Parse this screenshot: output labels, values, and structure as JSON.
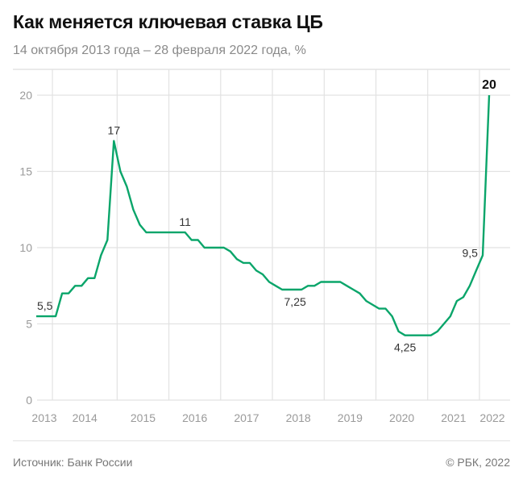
{
  "header": {
    "title": "Как меняется ключевая ставка ЦБ",
    "subtitle": "14 октября 2013 года – 28 февраля 2022 года, %"
  },
  "footer": {
    "source": "Источник: Банк России",
    "copyright": "© РБК, 2022"
  },
  "chart_data": {
    "type": "line",
    "title": "Как меняется ключевая ставка ЦБ",
    "subtitle": "14 октября 2013 года – 28 февраля 2022 года, %",
    "ylim": [
      0,
      20
    ],
    "yticks": [
      0,
      5,
      10,
      15,
      20
    ],
    "grid": true,
    "line_color": "#0aa56a",
    "years": [
      {
        "label": "2013",
        "count": 3
      },
      {
        "label": "2014",
        "count": 10
      },
      {
        "label": "2015",
        "count": 8
      },
      {
        "label": "2016",
        "count": 8
      },
      {
        "label": "2017",
        "count": 8
      },
      {
        "label": "2018",
        "count": 8
      },
      {
        "label": "2019",
        "count": 8
      },
      {
        "label": "2020",
        "count": 8
      },
      {
        "label": "2021",
        "count": 8
      },
      {
        "label": "2022",
        "count": 2
      }
    ],
    "values": [
      5.5,
      5.5,
      5.5,
      5.5,
      7,
      7,
      7.5,
      7.5,
      8,
      8,
      9.5,
      10.5,
      17,
      15,
      14,
      12.5,
      11.5,
      11,
      11,
      11,
      11,
      11,
      11,
      11,
      10.5,
      10.5,
      10,
      10,
      10,
      10,
      9.75,
      9.25,
      9,
      9,
      8.5,
      8.25,
      7.75,
      7.5,
      7.25,
      7.25,
      7.25,
      7.25,
      7.5,
      7.5,
      7.75,
      7.75,
      7.75,
      7.75,
      7.5,
      7.25,
      7,
      6.5,
      6.25,
      6,
      6,
      5.5,
      4.5,
      4.25,
      4.25,
      4.25,
      4.25,
      4.25,
      4.5,
      5,
      5.5,
      6.5,
      6.75,
      7.5,
      8.5,
      9.5,
      20
    ],
    "annotations": [
      {
        "index": 0,
        "text": "5,5",
        "pos": "above"
      },
      {
        "index": 12,
        "text": "17",
        "pos": "above"
      },
      {
        "index": 23,
        "text": "11",
        "pos": "above"
      },
      {
        "index": 40,
        "text": "7,25",
        "pos": "below"
      },
      {
        "index": 57,
        "text": "4,25",
        "pos": "below"
      },
      {
        "index": 69,
        "text": "9,5",
        "pos": "left"
      },
      {
        "index": 70,
        "text": "20",
        "pos": "above",
        "bold": true
      }
    ]
  }
}
